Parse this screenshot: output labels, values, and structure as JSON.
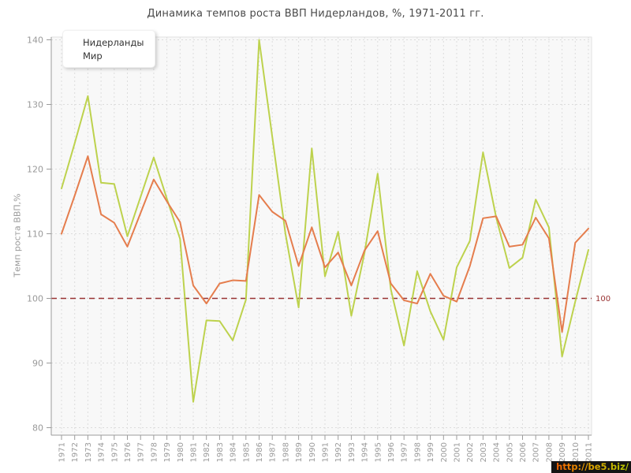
{
  "chart_data": {
    "type": "line",
    "title": "Динамика темпов роста ВВП Нидерландов, %, 1971-2011 гг.",
    "ylabel": "Темп роста ВВП,%",
    "xlabel": "",
    "x": [
      1971,
      1972,
      1973,
      1974,
      1975,
      1976,
      1977,
      1978,
      1979,
      1980,
      1981,
      1982,
      1983,
      1984,
      1985,
      1986,
      1987,
      1988,
      1989,
      1990,
      1991,
      1992,
      1993,
      1994,
      1995,
      1996,
      1997,
      1998,
      1999,
      2000,
      2001,
      2002,
      2003,
      2004,
      2005,
      2006,
      2007,
      2008,
      2009,
      2010,
      2011
    ],
    "series": [
      {
        "name": "Нидерланды",
        "color": "#bdd24d",
        "swatch": "#a9cc22",
        "values": [
          117.0,
          124.0,
          131.3,
          117.9,
          117.7,
          109.6,
          115.7,
          121.8,
          115.4,
          109.2,
          84.0,
          96.6,
          96.5,
          93.5,
          99.8,
          140.0,
          125.0,
          110.0,
          98.6,
          123.2,
          103.4,
          110.3,
          97.3,
          107.0,
          119.3,
          101.4,
          92.7,
          104.2,
          98.0,
          93.6,
          104.8,
          108.9,
          122.6,
          112.5,
          104.7,
          106.3,
          115.3,
          111.0,
          91.0,
          99.5,
          107.5
        ]
      },
      {
        "name": "Мир",
        "color": "#e57d4d",
        "swatch": "#e0622f",
        "values": [
          110.0,
          115.9,
          122.0,
          113.0,
          111.7,
          108.0,
          113.2,
          118.4,
          115.0,
          111.8,
          102.0,
          99.2,
          102.3,
          102.8,
          102.7,
          116.0,
          113.4,
          112.0,
          105.0,
          111.0,
          104.8,
          107.1,
          102.0,
          107.4,
          110.4,
          102.3,
          99.7,
          99.2,
          103.8,
          100.4,
          99.5,
          105.0,
          112.4,
          112.7,
          108.0,
          108.3,
          112.5,
          109.3,
          94.8,
          108.6,
          110.8
        ]
      }
    ],
    "ylim": [
      80,
      140
    ],
    "yticks": [
      80,
      90,
      100,
      110,
      120,
      130,
      140
    ],
    "grid": true,
    "legend_position": "top-left",
    "refline": {
      "value": 100,
      "label": "100",
      "color": "#993333"
    }
  },
  "watermark": {
    "text": "http://be5.biz/"
  }
}
